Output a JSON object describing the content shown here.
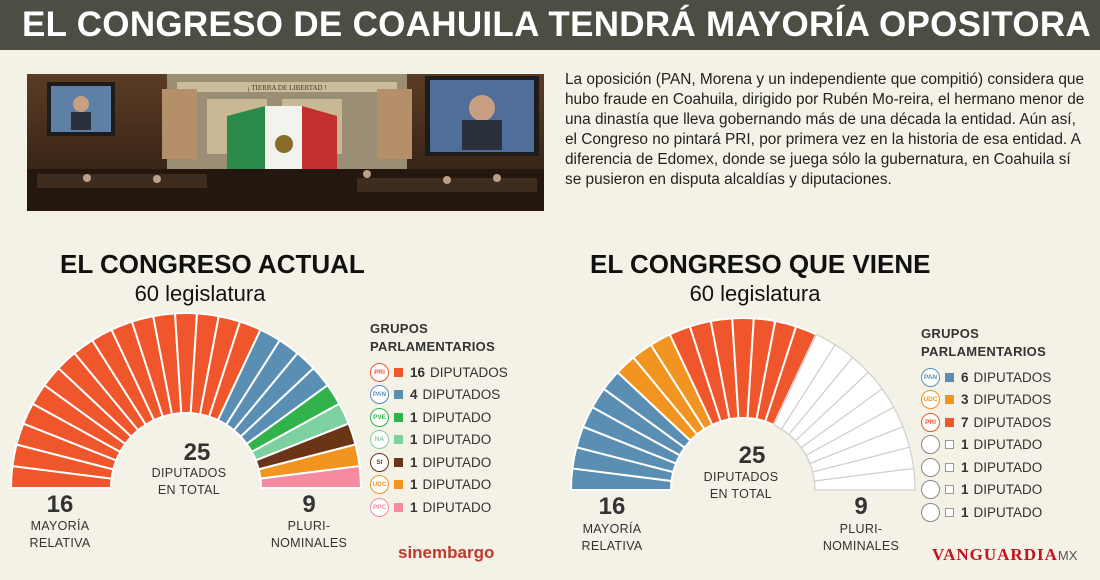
{
  "headline": "EL CONGRESO DE COAHUILA TENDRÁ MAYORÍA OPOSITORA",
  "body_text": "La oposición (PAN, Morena y un independiente que compitió) considera que hubo fraude en Coahuila, dirigido por Rubén Mo-reira, el hermano menor de una dinastía que lleva gobernando más de una década la entidad. Aún así, el Congreso no pintará PRI, por primera vez en la historia de esa entidad. A diferencia de Edomex, donde se juega sólo la gubernatura, en Coahuila sí se pusieron en disputa alcaldías y diputaciones.",
  "photo": {
    "banner_text": "¡ TIERRA DE LIBERTAD !"
  },
  "colors": {
    "pri": "#f0562b",
    "pan": "#5a8fb3",
    "pve": "#2fb34a",
    "panal": "#7dd0a0",
    "si": "#6b3416",
    "udc": "#f29420",
    "pt": "#f48ba0",
    "empty": "#ffffff",
    "empty_stroke": "#cfcfcf"
  },
  "brands": {
    "left": "sinembargo",
    "right": "VANGUARDIA",
    "right_suffix": "MX"
  },
  "chart_data": [
    {
      "type": "pie",
      "variant": "parliament-hemicycle",
      "title": "EL CONGRESO ACTUAL",
      "subtitle": "60 legislatura",
      "total": {
        "value": "25",
        "label_1": "DIPUTADOS",
        "label_2": "EN TOTAL"
      },
      "left_group": {
        "value": "16",
        "label_1": "MAYORÍA",
        "label_2": "RELATIVA"
      },
      "right_group": {
        "value": "9",
        "label_1": "PLURI-",
        "label_2": "NOMINALES"
      },
      "legend_title_1": "GRUPOS",
      "legend_title_2": "PARLAMENTARIOS",
      "series": [
        {
          "party": "pri",
          "logo": "PRI",
          "count": 16,
          "count_label": "16",
          "label": "DIPUTADOS",
          "color": "#f0562b"
        },
        {
          "party": "pan",
          "logo": "PAN",
          "count": 4,
          "count_label": "4",
          "label": "DIPUTADOS",
          "color": "#5a8fb3"
        },
        {
          "party": "pve",
          "logo": "PVE",
          "count": 1,
          "count_label": "1",
          "label": "DIPUTADO",
          "color": "#2fb34a"
        },
        {
          "party": "panal",
          "logo": "NA",
          "count": 1,
          "count_label": "1",
          "label": "DIPUTADO",
          "color": "#7dd0a0"
        },
        {
          "party": "si",
          "logo": "SI",
          "count": 1,
          "count_label": "1",
          "label": "DIPUTADO",
          "color": "#6b3416"
        },
        {
          "party": "udc",
          "logo": "UDC",
          "count": 1,
          "count_label": "1",
          "label": "DIPUTADO",
          "color": "#f29420"
        },
        {
          "party": "pt",
          "logo": "PPC",
          "count": 1,
          "count_label": "1",
          "label": "DIPUTADO",
          "color": "#f48ba0"
        }
      ]
    },
    {
      "type": "pie",
      "variant": "parliament-hemicycle",
      "title": "EL CONGRESO QUE VIENE",
      "subtitle": "60 legislatura",
      "total": {
        "value": "25",
        "label_1": "DIPUTADOS",
        "label_2": "EN TOTAL"
      },
      "left_group": {
        "value": "16",
        "label_1": "MAYORÍA",
        "label_2": "RELATIVA"
      },
      "right_group": {
        "value": "9",
        "label_1": "PLURI-",
        "label_2": "NOMINALES"
      },
      "legend_title_1": "GRUPOS",
      "legend_title_2": "PARLAMENTARIOS",
      "series": [
        {
          "party": "pan",
          "logo": "PAN",
          "count": 6,
          "count_label": "6",
          "label": "DIPUTADOS",
          "color": "#5a8fb3"
        },
        {
          "party": "udc",
          "logo": "UDC",
          "count": 3,
          "count_label": "3",
          "label": "DIPUTADOS",
          "color": "#f29420"
        },
        {
          "party": "pri",
          "logo": "PRI",
          "count": 7,
          "count_label": "7",
          "label": "DIPUTADOS",
          "color": "#f0562b"
        },
        {
          "party": "empty",
          "logo": "",
          "count": 1,
          "count_label": "1",
          "label": "DIPUTADO",
          "color": "#ffffff"
        },
        {
          "party": "empty",
          "logo": "",
          "count": 1,
          "count_label": "1",
          "label": "DIPUTADO",
          "color": "#ffffff"
        },
        {
          "party": "empty",
          "logo": "",
          "count": 1,
          "count_label": "1",
          "label": "DIPUTADO",
          "color": "#ffffff"
        },
        {
          "party": "empty",
          "logo": "",
          "count": 1,
          "count_label": "1",
          "label": "DIPUTADO",
          "color": "#ffffff"
        }
      ],
      "unassigned_seats": 9
    }
  ]
}
